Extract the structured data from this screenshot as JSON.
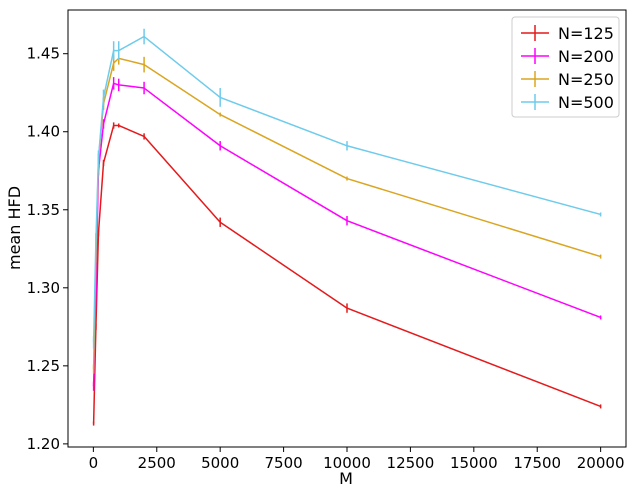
{
  "chart_data": {
    "type": "line",
    "title": "",
    "xlabel": "M",
    "ylabel": "mean HFD",
    "xlim": [
      -1000,
      21000
    ],
    "ylim": [
      1.198,
      1.478
    ],
    "xticks": [
      0,
      2500,
      5000,
      7500,
      10000,
      12500,
      15000,
      17500,
      20000
    ],
    "xtick_labels": [
      "0",
      "2500",
      "5000",
      "7500",
      "10000",
      "12500",
      "15000",
      "17500",
      "20000"
    ],
    "yticks": [
      1.2,
      1.25,
      1.3,
      1.35,
      1.4,
      1.45
    ],
    "ytick_labels": [
      "1.20",
      "1.25",
      "1.30",
      "1.35",
      "1.40",
      "1.45"
    ],
    "legend_position": "top-right",
    "grid": false,
    "x": [
      10,
      100,
      200,
      400,
      800,
      1000,
      2000,
      5000,
      10000,
      20000
    ],
    "series": [
      {
        "name": "N=125",
        "color": "#e41a1c",
        "values": [
          1.213,
          1.275,
          1.335,
          1.38,
          1.404,
          1.404,
          1.397,
          1.342,
          1.287,
          1.224
        ],
        "errors": [
          0.0,
          0.002,
          0.002,
          0.002,
          0.002,
          0.001,
          0.002,
          0.003,
          0.003,
          0.0
        ]
      },
      {
        "name": "N=200",
        "color": "#ff00ff",
        "values": [
          1.237,
          1.3,
          1.375,
          1.405,
          1.431,
          1.43,
          1.428,
          1.391,
          1.343,
          1.281
        ],
        "errors": [
          0.003,
          0.003,
          0.003,
          0.003,
          0.004,
          0.004,
          0.004,
          0.003,
          0.003,
          0.0
        ]
      },
      {
        "name": "N=250",
        "color": "#daa520",
        "values": [
          1.248,
          1.32,
          1.382,
          1.418,
          1.444,
          1.447,
          1.443,
          1.411,
          1.37,
          1.32
        ],
        "errors": [
          0.003,
          0.004,
          0.004,
          0.004,
          0.005,
          0.004,
          0.005,
          0.0,
          0.0,
          0.0
        ]
      },
      {
        "name": "N=500",
        "color": "#6ecbeb",
        "values": [
          1.265,
          1.33,
          1.383,
          1.422,
          1.452,
          1.452,
          1.461,
          1.422,
          1.391,
          1.347
        ],
        "errors": [
          0.004,
          0.005,
          0.005,
          0.005,
          0.006,
          0.006,
          0.005,
          0.006,
          0.003,
          0.0
        ]
      }
    ]
  }
}
